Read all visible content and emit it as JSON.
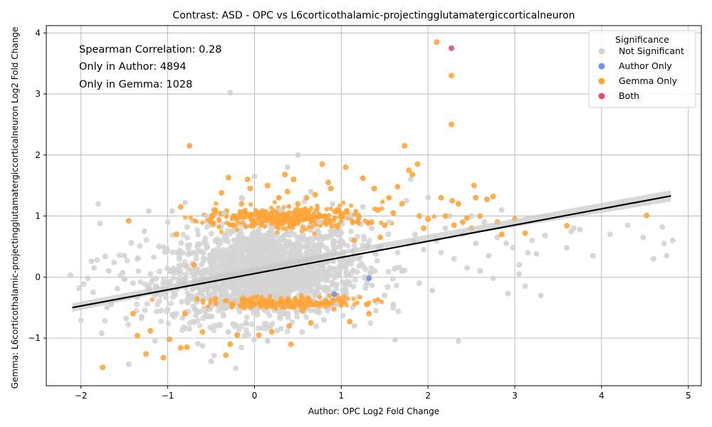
{
  "chart_data": {
    "type": "scatter",
    "title": "Contrast: ASD - OPC vs L6corticothalamic-projectingglutamatergiccorticalneuron",
    "xlabel": "Author: OPC Log2 Fold Change",
    "ylabel": "Gemma: L6corticothalamic-projectingglutamatergiccorticalneuron Log2 Fold Change",
    "xlim": [
      -2.4,
      5.15
    ],
    "ylim": [
      -1.78,
      4.12
    ],
    "xticks": [
      -2,
      -1,
      0,
      1,
      2,
      3,
      4,
      5
    ],
    "yticks": [
      -1,
      0,
      1,
      2,
      3,
      4
    ],
    "xtick_labels": [
      "−2",
      "−1",
      "0",
      "1",
      "2",
      "3",
      "4",
      "5"
    ],
    "ytick_labels": [
      "−1",
      "0",
      "1",
      "2",
      "3",
      "4"
    ],
    "grid": true,
    "annotations": [
      "Spearman Correlation: 0.28",
      "Only in Author: 4894",
      "Only in Gemma: 1028"
    ],
    "legend": {
      "title": "Significance",
      "placement": "top-right",
      "entries": [
        {
          "label": "Not Significant",
          "color": "#d3d3d3"
        },
        {
          "label": "Author Only",
          "color": "#6f8fe0"
        },
        {
          "label": "Gemma Only",
          "color": "#ffa43a"
        },
        {
          "label": "Both",
          "color": "#e0506a"
        }
      ]
    },
    "regression_line": {
      "x": [
        -2.1,
        4.8
      ],
      "y": [
        -0.5,
        1.33
      ],
      "color": "#000000"
    },
    "series": [
      {
        "name": "Not Significant",
        "color": "#d3d3d3",
        "points": [
          [
            -2.12,
            0.03
          ],
          [
            -2.02,
            -0.18
          ],
          [
            -2.0,
            -0.71
          ],
          [
            -1.92,
            -0.02
          ],
          [
            -1.88,
            0.26
          ],
          [
            -1.85,
            0.15
          ],
          [
            -1.86,
            -0.25
          ],
          [
            -1.8,
            1.2
          ],
          [
            -1.78,
            0.88
          ],
          [
            -1.76,
            -0.92
          ],
          [
            -1.72,
            0.34
          ],
          [
            -1.7,
            -0.5
          ],
          [
            -1.68,
            0.1
          ],
          [
            -1.65,
            -0.45
          ],
          [
            -1.62,
            0.24
          ],
          [
            -1.58,
            -0.19
          ],
          [
            -1.52,
            0.07
          ],
          [
            -1.5,
            0.35
          ],
          [
            -1.48,
            -0.68
          ],
          [
            -1.45,
            -1.43
          ],
          [
            -1.42,
            0.56
          ],
          [
            -1.4,
            -0.1
          ],
          [
            -1.35,
            0.3
          ],
          [
            -1.3,
            -0.65
          ],
          [
            -1.27,
            0.75
          ],
          [
            -1.22,
            1.08
          ],
          [
            -1.2,
            0.05
          ],
          [
            -1.15,
            -0.3
          ],
          [
            -1.1,
            0.5
          ],
          [
            -1.08,
            -0.55
          ],
          [
            -1.0,
            0.9
          ],
          [
            -0.95,
            1.08
          ],
          [
            -0.9,
            -0.6
          ],
          [
            -0.85,
            0.2
          ],
          [
            -0.8,
            1.22
          ],
          [
            -0.75,
            -0.85
          ],
          [
            -0.7,
            0.4
          ],
          [
            -0.65,
            0.7
          ],
          [
            -0.6,
            -0.3
          ],
          [
            -0.55,
            1.0
          ],
          [
            -0.5,
            -1.38
          ],
          [
            -0.45,
            0.6
          ],
          [
            -0.4,
            -0.2
          ],
          [
            -0.35,
            1.05
          ],
          [
            -0.3,
            -0.9
          ],
          [
            -0.28,
            3.02
          ],
          [
            -0.25,
            0.3
          ],
          [
            -0.2,
            -0.4
          ],
          [
            -0.15,
            1.3
          ],
          [
            -0.1,
            -0.75
          ],
          [
            -0.05,
            0.6
          ],
          [
            0.0,
            1.65
          ],
          [
            0.05,
            -0.2
          ],
          [
            0.1,
            0.4
          ],
          [
            0.15,
            -1.05
          ],
          [
            0.2,
            0.8
          ],
          [
            0.25,
            -0.35
          ],
          [
            0.3,
            1.1
          ],
          [
            0.35,
            -0.6
          ],
          [
            0.38,
            1.8
          ],
          [
            0.42,
            0.2
          ],
          [
            0.5,
            2.0
          ],
          [
            0.55,
            -0.9
          ],
          [
            0.6,
            0.5
          ],
          [
            0.65,
            1.4
          ],
          [
            0.7,
            -0.3
          ],
          [
            0.75,
            0.9
          ],
          [
            0.8,
            -0.7
          ],
          [
            0.85,
            0.3
          ],
          [
            0.9,
            1.2
          ],
          [
            0.95,
            -0.45
          ],
          [
            1.0,
            0.6
          ],
          [
            1.05,
            -0.2
          ],
          [
            1.1,
            1.0
          ],
          [
            1.15,
            -0.8
          ],
          [
            1.2,
            0.3
          ],
          [
            1.25,
            1.15
          ],
          [
            1.3,
            -0.1
          ],
          [
            1.35,
            0.8
          ],
          [
            1.4,
            -0.55
          ],
          [
            1.45,
            0.5
          ],
          [
            1.5,
            -0.3
          ],
          [
            1.55,
            0.9
          ],
          [
            1.6,
            -0.45
          ],
          [
            1.62,
            -1.03
          ],
          [
            1.65,
            0.4
          ],
          [
            1.7,
            0.1
          ],
          [
            1.75,
            1.25
          ],
          [
            1.8,
            1.6
          ],
          [
            1.85,
            0.7
          ],
          [
            1.9,
            -0.1
          ],
          [
            1.95,
            0.45
          ],
          [
            2.0,
            1.3
          ],
          [
            2.05,
            -0.22
          ],
          [
            2.1,
            0.6
          ],
          [
            2.15,
            0.4
          ],
          [
            2.2,
            0.8
          ],
          [
            2.25,
            1.0
          ],
          [
            2.3,
            0.3
          ],
          [
            2.35,
            -1.05
          ],
          [
            2.4,
            0.7
          ],
          [
            2.45,
            0.15
          ],
          [
            2.5,
            1.0
          ],
          [
            2.55,
            0.55
          ],
          [
            2.6,
            0.1
          ],
          [
            2.65,
            0.9
          ],
          [
            2.7,
            0.35
          ],
          [
            2.75,
            -0.02
          ],
          [
            2.8,
            0.65
          ],
          [
            2.85,
            1.1
          ],
          [
            2.9,
            0.55
          ],
          [
            2.92,
            -0.27
          ],
          [
            2.98,
            0.48
          ],
          [
            3.05,
            0.2
          ],
          [
            3.05,
            0.05
          ],
          [
            3.12,
            -0.15
          ],
          [
            3.15,
            0.4
          ],
          [
            3.2,
            0.6
          ],
          [
            3.25,
            0.38
          ],
          [
            3.3,
            -0.3
          ],
          [
            3.35,
            0.68
          ],
          [
            3.6,
            0.48
          ],
          [
            3.65,
            0.75
          ],
          [
            3.68,
            0.8
          ],
          [
            3.75,
            0.78
          ],
          [
            3.9,
            0.35
          ],
          [
            4.1,
            0.7
          ],
          [
            4.3,
            0.85
          ],
          [
            4.48,
            0.65
          ],
          [
            4.6,
            0.3
          ],
          [
            4.7,
            0.82
          ],
          [
            4.72,
            0.55
          ],
          [
            4.75,
            0.35
          ],
          [
            4.82,
            0.6
          ]
        ]
      },
      {
        "name": "Author Only",
        "color": "#6f8fe0",
        "points": [
          [
            0.92,
            -0.28
          ],
          [
            1.32,
            -0.02
          ]
        ]
      },
      {
        "name": "Gemma Only",
        "color": "#ffa43a",
        "points": [
          [
            -1.75,
            -1.48
          ],
          [
            -1.45,
            0.92
          ],
          [
            -1.4,
            -0.6
          ],
          [
            -1.35,
            -0.96
          ],
          [
            -1.2,
            -0.88
          ],
          [
            -1.25,
            -1.26
          ],
          [
            -1.05,
            -1.32
          ],
          [
            -0.98,
            -1.02
          ],
          [
            -0.9,
            0.7
          ],
          [
            -0.85,
            -1.16
          ],
          [
            -0.78,
            -1.15
          ],
          [
            -0.8,
            -0.6
          ],
          [
            -0.75,
            2.15
          ],
          [
            -0.85,
            1.15
          ],
          [
            -0.7,
            0.2
          ],
          [
            -0.6,
            -0.9
          ],
          [
            -0.5,
            0.9
          ],
          [
            -0.45,
            1.1
          ],
          [
            -0.38,
            1.38
          ],
          [
            -0.33,
            -1.28
          ],
          [
            -0.3,
            1.63
          ],
          [
            -0.28,
            -1.1
          ],
          [
            -0.25,
            0.85
          ],
          [
            -0.2,
            -0.95
          ],
          [
            -0.15,
            1.2
          ],
          [
            -0.08,
            1.6
          ],
          [
            -0.05,
            1.45
          ],
          [
            0.05,
            -0.95
          ],
          [
            0.1,
            1.0
          ],
          [
            0.15,
            1.5
          ],
          [
            0.2,
            -0.9
          ],
          [
            0.28,
            1.3
          ],
          [
            0.35,
            1.68
          ],
          [
            0.38,
            1.4
          ],
          [
            0.4,
            -0.8
          ],
          [
            0.42,
            -1.1
          ],
          [
            0.45,
            1.6
          ],
          [
            0.5,
            1.2
          ],
          [
            0.55,
            -0.55
          ],
          [
            0.6,
            1.3
          ],
          [
            0.65,
            -0.75
          ],
          [
            0.7,
            1.35
          ],
          [
            0.78,
            1.85
          ],
          [
            0.85,
            1.55
          ],
          [
            0.88,
            1.45
          ],
          [
            0.95,
            1.1
          ],
          [
            1.0,
            -0.42
          ],
          [
            1.05,
            1.8
          ],
          [
            1.1,
            -0.73
          ],
          [
            1.15,
            0.6
          ],
          [
            1.2,
            1.0
          ],
          [
            1.25,
            1.62
          ],
          [
            1.3,
            -0.45
          ],
          [
            1.32,
            -0.6
          ],
          [
            1.35,
            0.9
          ],
          [
            1.38,
            1.45
          ],
          [
            1.42,
            1.1
          ],
          [
            1.45,
            0.65
          ],
          [
            1.5,
            0.85
          ],
          [
            1.55,
            1.3
          ],
          [
            1.6,
            1.05
          ],
          [
            1.65,
            1.48
          ],
          [
            1.7,
            1.2
          ],
          [
            1.73,
            2.15
          ],
          [
            1.78,
            1.75
          ],
          [
            1.82,
            1.68
          ],
          [
            1.88,
            1.85
          ],
          [
            1.9,
            1.0
          ],
          [
            1.95,
            0.8
          ],
          [
            2.0,
            0.95
          ],
          [
            2.1,
            3.85
          ],
          [
            2.15,
            1.3
          ],
          [
            2.2,
            1.0
          ],
          [
            2.27,
            3.3
          ],
          [
            2.27,
            2.5
          ],
          [
            2.28,
            1.25
          ],
          [
            2.3,
            0.85
          ],
          [
            2.35,
            1.2
          ],
          [
            2.4,
            0.9
          ],
          [
            2.45,
            0.97
          ],
          [
            2.5,
            0.8
          ],
          [
            2.53,
            1.5
          ],
          [
            2.55,
            1.3
          ],
          [
            2.6,
            1.0
          ],
          [
            2.68,
            1.27
          ],
          [
            2.75,
            1.32
          ],
          [
            2.8,
            0.9
          ],
          [
            2.85,
            0.7
          ],
          [
            3.0,
            0.95
          ],
          [
            3.12,
            0.72
          ],
          [
            3.6,
            0.84
          ],
          [
            4.52,
            1.01
          ]
        ]
      },
      {
        "name": "Both",
        "color": "#e0506a",
        "points": [
          [
            2.27,
            3.75
          ]
        ]
      }
    ]
  }
}
